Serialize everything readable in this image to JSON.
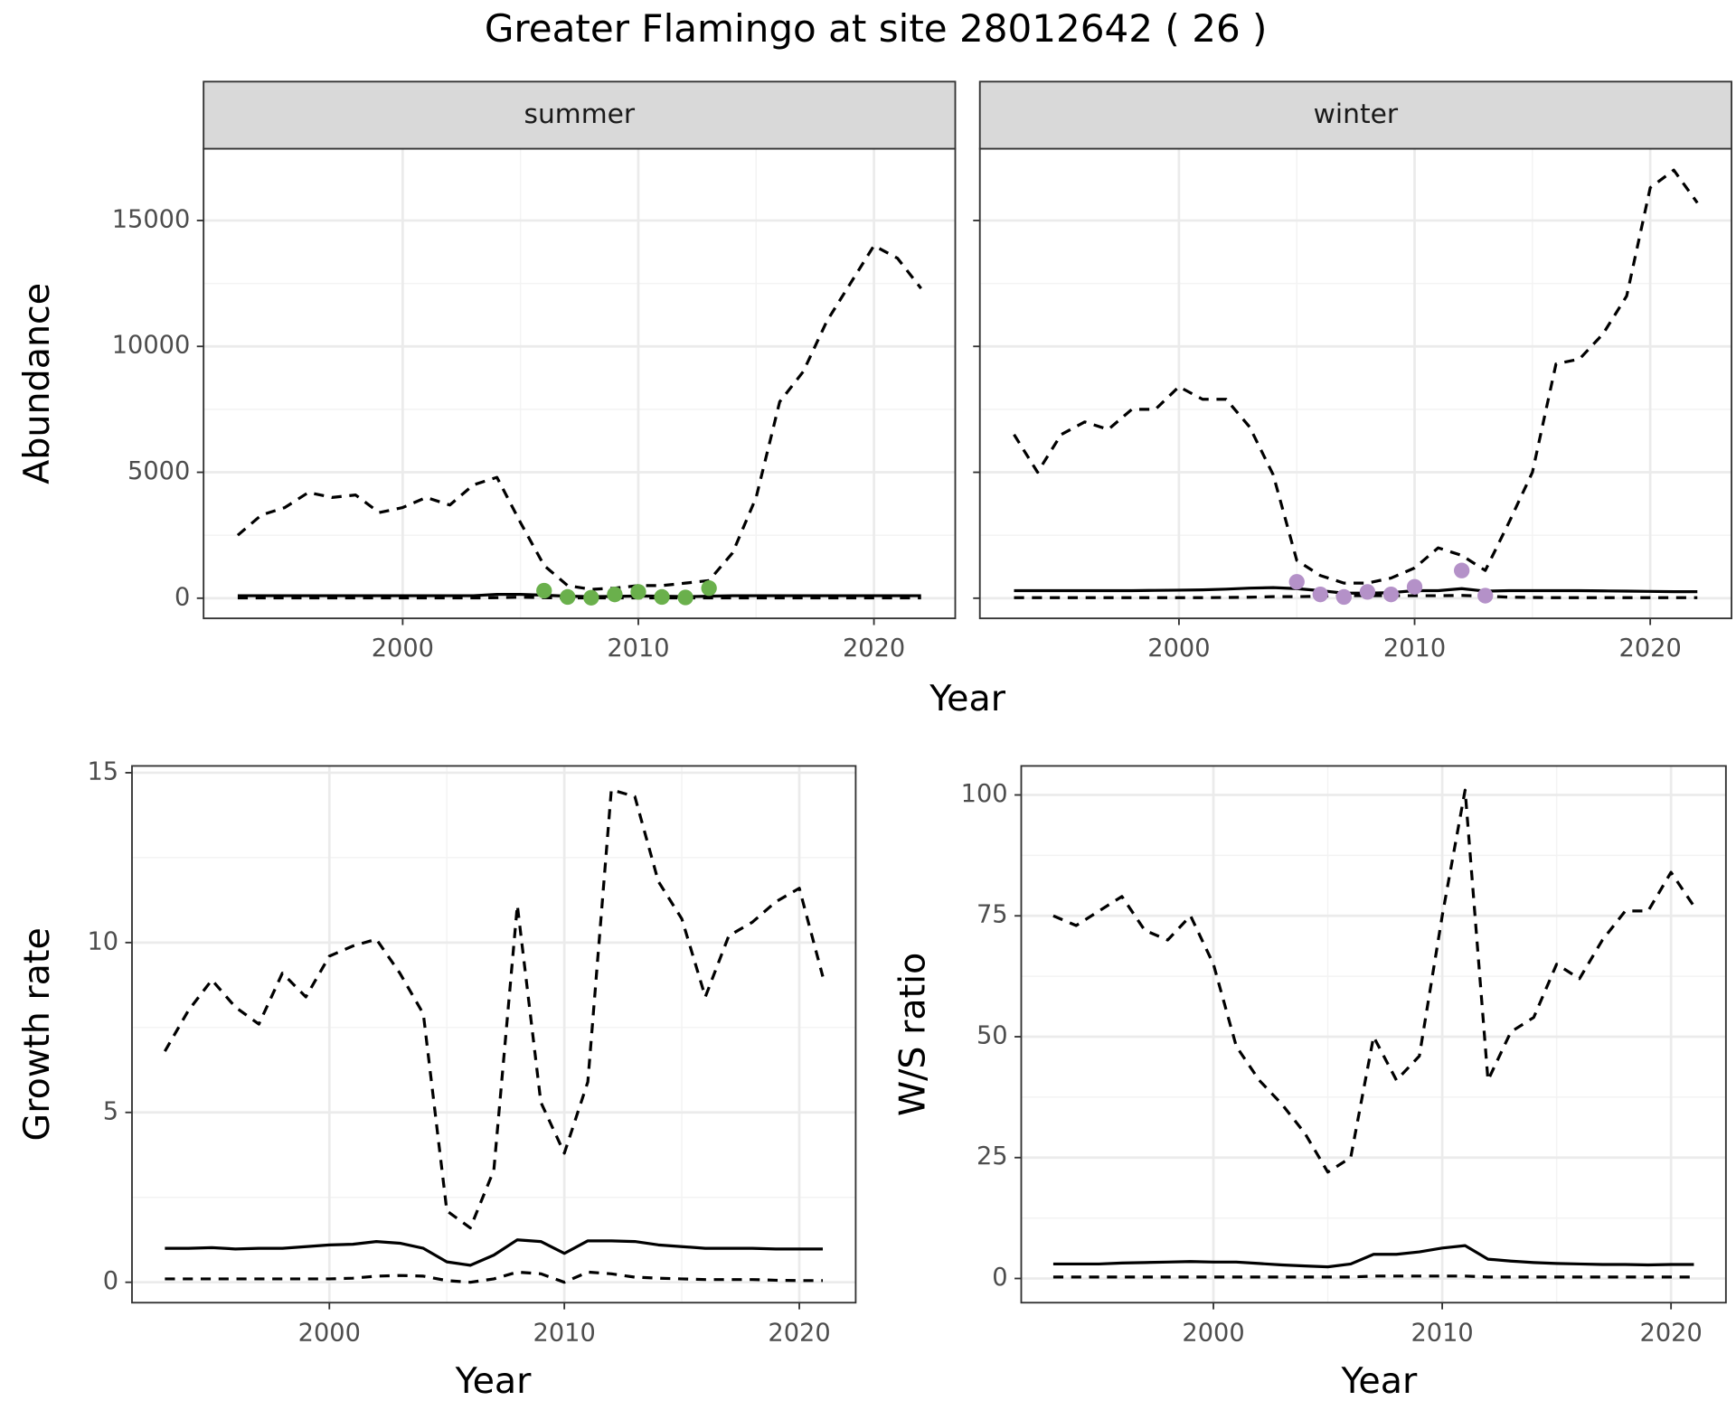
{
  "title": "Greater Flamingo at site 28012642 ( 26 )",
  "chart_data": [
    {
      "type": "line",
      "panel": "summer",
      "xlabel": "Year",
      "ylabel": "Abundance",
      "x": [
        1993,
        1994,
        1995,
        1996,
        1997,
        1998,
        1999,
        2000,
        2001,
        2002,
        2003,
        2004,
        2005,
        2006,
        2007,
        2008,
        2009,
        2010,
        2011,
        2012,
        2013,
        2014,
        2015,
        2016,
        2017,
        2018,
        2019,
        2020,
        2021,
        2022
      ],
      "series": [
        {
          "style": "dashed",
          "color": "#000000",
          "values": [
            2500,
            3300,
            3600,
            4200,
            4000,
            4100,
            3400,
            3600,
            4000,
            3700,
            4500,
            4800,
            3000,
            1300,
            500,
            350,
            400,
            500,
            500,
            600,
            700,
            1800,
            4000,
            7800,
            9000,
            11000,
            12500,
            14000,
            13500,
            12300
          ]
        },
        {
          "style": "solid",
          "color": "#000000",
          "values": [
            100,
            100,
            100,
            100,
            100,
            100,
            100,
            100,
            100,
            100,
            100,
            150,
            150,
            120,
            80,
            60,
            70,
            90,
            80,
            60,
            80,
            100,
            100,
            100,
            100,
            100,
            100,
            100,
            100,
            100
          ]
        },
        {
          "style": "dashed",
          "color": "#000000",
          "values": [
            10,
            10,
            10,
            10,
            10,
            10,
            10,
            10,
            10,
            10,
            10,
            20,
            40,
            20,
            10,
            10,
            10,
            10,
            10,
            10,
            10,
            10,
            10,
            10,
            10,
            10,
            10,
            10,
            10,
            10
          ]
        },
        {
          "style": "points",
          "color": "#6ab04c",
          "x": [
            2006,
            2007,
            2008,
            2009,
            2010,
            2011,
            2012,
            2013
          ],
          "values": [
            300,
            50,
            20,
            150,
            250,
            50,
            30,
            400
          ]
        }
      ],
      "xlim": [
        1991.55,
        2023.45
      ],
      "ylim": [
        -800,
        17850
      ],
      "xticks": [
        2000,
        2010,
        2020
      ],
      "yticks": [
        0,
        5000,
        10000,
        15000
      ],
      "grid": true
    },
    {
      "type": "line",
      "panel": "winter",
      "x": [
        1993,
        1994,
        1995,
        1996,
        1997,
        1998,
        1999,
        2000,
        2001,
        2002,
        2003,
        2004,
        2005,
        2006,
        2007,
        2008,
        2009,
        2010,
        2011,
        2012,
        2013,
        2014,
        2015,
        2016,
        2017,
        2018,
        2019,
        2020,
        2021,
        2022
      ],
      "series": [
        {
          "style": "dashed",
          "color": "#000000",
          "values": [
            6500,
            5000,
            6500,
            7000,
            6700,
            7500,
            7500,
            8400,
            7900,
            7900,
            6800,
            4900,
            1500,
            900,
            600,
            600,
            800,
            1200,
            2000,
            1700,
            1100,
            3000,
            5000,
            9300,
            9500,
            10500,
            12000,
            16300,
            17000,
            15700
          ]
        },
        {
          "style": "solid",
          "color": "#000000",
          "values": [
            300,
            300,
            300,
            300,
            300,
            300,
            310,
            320,
            330,
            360,
            400,
            420,
            380,
            300,
            200,
            200,
            220,
            300,
            300,
            380,
            280,
            300,
            300,
            300,
            300,
            290,
            280,
            270,
            260,
            260
          ]
        },
        {
          "style": "dashed",
          "color": "#000000",
          "values": [
            20,
            20,
            20,
            20,
            20,
            20,
            20,
            20,
            20,
            30,
            40,
            60,
            60,
            80,
            100,
            100,
            100,
            100,
            100,
            110,
            80,
            40,
            30,
            20,
            20,
            20,
            20,
            20,
            20,
            20
          ]
        },
        {
          "style": "points",
          "color": "#b491c8",
          "x": [
            2005,
            2006,
            2007,
            2008,
            2009,
            2010,
            2012,
            2013
          ],
          "values": [
            650,
            150,
            50,
            250,
            150,
            450,
            1100,
            100
          ]
        }
      ],
      "xlim": [
        1991.55,
        2023.45
      ],
      "ylim": [
        -800,
        17850
      ],
      "xticks": [
        2000,
        2010,
        2020
      ],
      "yticks": [
        0,
        5000,
        10000,
        15000
      ],
      "ytick_labels": false,
      "grid": true
    },
    {
      "type": "line",
      "xlabel": "Year",
      "ylabel": "Growth rate",
      "x": [
        1993,
        1994,
        1995,
        1996,
        1997,
        1998,
        1999,
        2000,
        2001,
        2002,
        2003,
        2004,
        2005,
        2006,
        2007,
        2008,
        2009,
        2010,
        2011,
        2012,
        2013,
        2014,
        2015,
        2016,
        2017,
        2018,
        2019,
        2020,
        2021
      ],
      "series": [
        {
          "style": "dashed",
          "color": "#000000",
          "values": [
            6.8,
            8.0,
            8.9,
            8.1,
            7.6,
            9.1,
            8.4,
            9.6,
            9.9,
            10.1,
            9.1,
            7.9,
            2.1,
            1.6,
            3.3,
            11.1,
            5.3,
            3.8,
            5.9,
            14.5,
            14.3,
            11.8,
            10.7,
            8.4,
            10.2,
            10.6,
            11.2,
            11.6,
            9.0
          ]
        },
        {
          "style": "solid",
          "color": "#000000",
          "values": [
            1.0,
            1.0,
            1.02,
            0.98,
            1.0,
            1.0,
            1.05,
            1.1,
            1.12,
            1.2,
            1.15,
            1.0,
            0.6,
            0.5,
            0.8,
            1.25,
            1.2,
            0.85,
            1.22,
            1.22,
            1.2,
            1.1,
            1.05,
            1.0,
            1.0,
            1.0,
            0.98,
            0.98,
            0.98
          ]
        },
        {
          "style": "dashed",
          "color": "#000000",
          "values": [
            0.1,
            0.1,
            0.1,
            0.1,
            0.1,
            0.1,
            0.1,
            0.1,
            0.12,
            0.18,
            0.2,
            0.18,
            0.05,
            0,
            0.1,
            0.3,
            0.25,
            0,
            0.3,
            0.25,
            0.15,
            0.12,
            0.1,
            0.08,
            0.08,
            0.08,
            0.06,
            0.05,
            0.05
          ]
        }
      ],
      "xlim": [
        1991.6,
        2022.4
      ],
      "ylim": [
        -0.6,
        15.2
      ],
      "xticks": [
        2000,
        2010,
        2020
      ],
      "yticks": [
        0,
        5,
        10,
        15
      ],
      "grid": true
    },
    {
      "type": "line",
      "xlabel": "Year",
      "ylabel": "W/S ratio",
      "x": [
        1993,
        1994,
        1995,
        1996,
        1997,
        1998,
        1999,
        2000,
        2001,
        2002,
        2003,
        2004,
        2005,
        2006,
        2007,
        2008,
        2009,
        2010,
        2011,
        2012,
        2013,
        2014,
        2015,
        2016,
        2017,
        2018,
        2019,
        2020,
        2021
      ],
      "series": [
        {
          "style": "dashed",
          "color": "#000000",
          "values": [
            75,
            73,
            76,
            79,
            72,
            70,
            75,
            65,
            48,
            41,
            36,
            30,
            22,
            25,
            50,
            41,
            46,
            75,
            101,
            41,
            51,
            54,
            65,
            62,
            70,
            76,
            76,
            84,
            77
          ]
        },
        {
          "style": "solid",
          "color": "#000000",
          "values": [
            3,
            3,
            3,
            3.2,
            3.3,
            3.4,
            3.5,
            3.4,
            3.4,
            3.1,
            2.8,
            2.6,
            2.4,
            3,
            5,
            5,
            5.5,
            6.3,
            6.8,
            4,
            3.6,
            3.3,
            3.1,
            3,
            2.9,
            2.9,
            2.8,
            2.9,
            2.9
          ]
        },
        {
          "style": "dashed",
          "color": "#000000",
          "values": [
            0.3,
            0.3,
            0.3,
            0.3,
            0.3,
            0.3,
            0.3,
            0.3,
            0.3,
            0.3,
            0.3,
            0.3,
            0.3,
            0.3,
            0.5,
            0.5,
            0.5,
            0.5,
            0.5,
            0.3,
            0.3,
            0.3,
            0.3,
            0.3,
            0.3,
            0.3,
            0.3,
            0.3,
            0.3
          ]
        }
      ],
      "xlim": [
        1991.6,
        2022.4
      ],
      "ylim": [
        -5,
        106
      ],
      "xticks": [
        2000,
        2010,
        2020
      ],
      "yticks": [
        0,
        25,
        50,
        75,
        100
      ],
      "grid": true
    }
  ]
}
